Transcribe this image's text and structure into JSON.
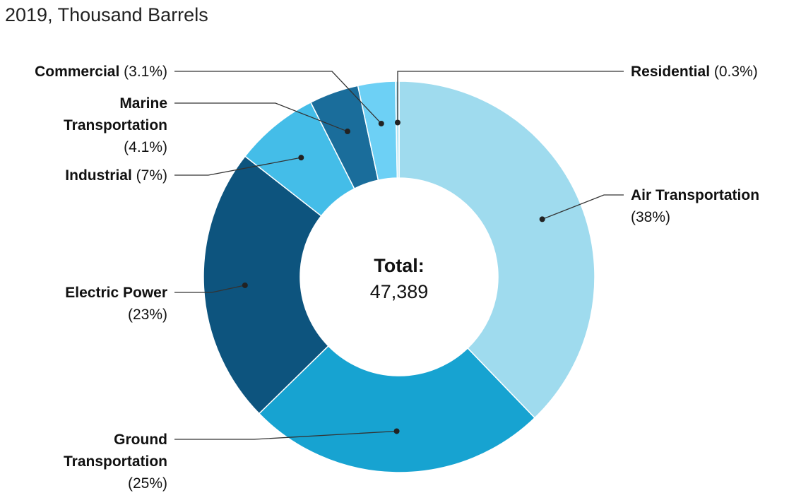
{
  "chart_data": {
    "type": "pie",
    "subtitle": "2019, Thousand Barrels",
    "center_label": "Total:",
    "center_value": "47,389",
    "slices": [
      {
        "name": "Air Transportation",
        "pct": "(38%)",
        "value": 38,
        "color": "#9fdbee"
      },
      {
        "name": "Ground Transportation",
        "pct": "(25%)",
        "value": 25,
        "color": "#17a3d1"
      },
      {
        "name": "Electric Power",
        "pct": "(23%)",
        "value": 23,
        "color": "#0d547e"
      },
      {
        "name": "Industrial",
        "pct": "(7%)",
        "value": 7,
        "color": "#44bde8"
      },
      {
        "name": "Marine Transportation",
        "pct": "(4.1%)",
        "value": 4.1,
        "color": "#1a6d9b"
      },
      {
        "name": "Commercial",
        "pct": "(3.1%)",
        "value": 3.1,
        "color": "#6dd0f5"
      },
      {
        "name": "Residential",
        "pct": "(0.3%)",
        "value": 0.3,
        "color": "#b7e5f4"
      }
    ]
  }
}
